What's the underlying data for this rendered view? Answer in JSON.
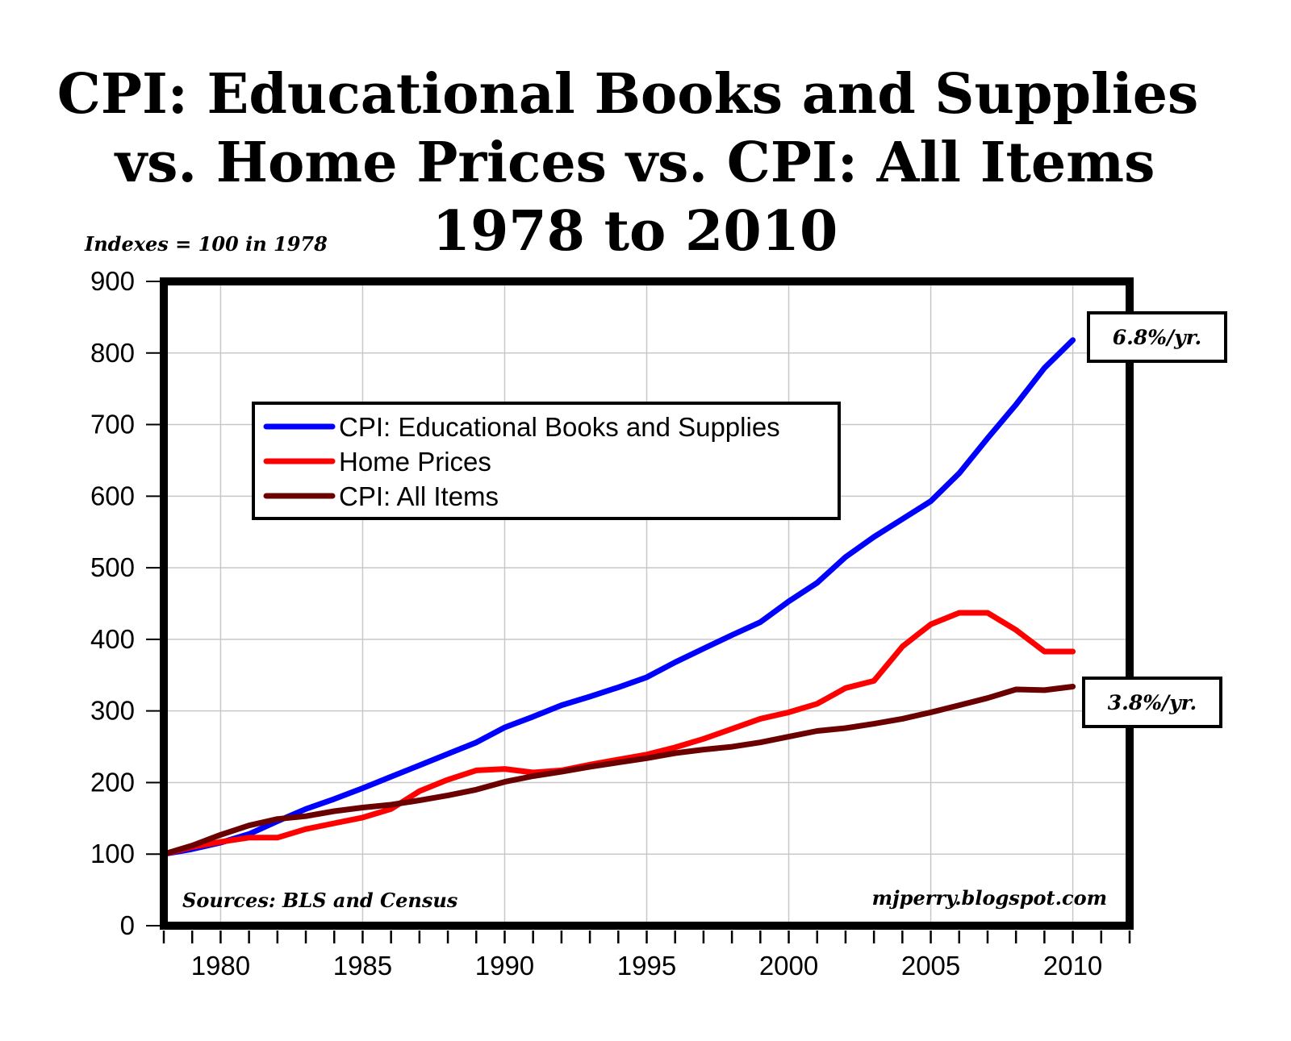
{
  "chart_data": {
    "type": "line",
    "title": [
      "CPI: Educational Books and Supplies",
      "vs. Home Prices vs. CPI: All Items",
      "1978 to 2010"
    ],
    "ylabel": "Indexes = 100 in 1978",
    "xlim": [
      1978,
      2012
    ],
    "ylim": [
      0,
      900
    ],
    "yticks": [
      0,
      100,
      200,
      300,
      400,
      500,
      600,
      700,
      800,
      900
    ],
    "ytick_labels": [
      "0",
      "100",
      "200",
      "300",
      "400",
      "500",
      "600",
      "700",
      "800",
      "900"
    ],
    "xticks": [
      1980,
      1985,
      1990,
      1995,
      2000,
      2005,
      2010
    ],
    "xtick_labels": [
      "1980",
      "1985",
      "1990",
      "1995",
      "2000",
      "2005",
      "2010"
    ],
    "grid": true,
    "legend_position": "upper-left",
    "x": [
      1978,
      1979,
      1980,
      1981,
      1982,
      1983,
      1984,
      1985,
      1986,
      1987,
      1988,
      1989,
      1990,
      1991,
      1992,
      1993,
      1994,
      1995,
      1996,
      1997,
      1998,
      1999,
      2000,
      2001,
      2002,
      2003,
      2004,
      2005,
      2006,
      2007,
      2008,
      2009,
      2010
    ],
    "series": [
      {
        "name": "CPI: Educational Books and Supplies",
        "color": "#0000ff",
        "values": [
          100,
          107,
          116,
          128,
          146,
          163,
          177,
          192,
          208,
          224,
          240,
          256,
          277,
          292,
          308,
          320,
          333,
          347,
          368,
          387,
          406,
          424,
          453,
          479,
          515,
          543,
          568,
          593,
          632,
          681,
          728,
          779,
          818
        ]
      },
      {
        "name": "Home Prices",
        "color": "#ff0000",
        "values": [
          100,
          110,
          117,
          123,
          123,
          135,
          143,
          151,
          163,
          188,
          204,
          217,
          219,
          214,
          217,
          225,
          232,
          239,
          249,
          261,
          275,
          289,
          298,
          310,
          332,
          342,
          390,
          421,
          437,
          437,
          413,
          383,
          383
        ]
      },
      {
        "name": "CPI: All Items",
        "color": "#6b0000",
        "values": [
          100,
          112,
          127,
          140,
          149,
          153,
          160,
          165,
          169,
          175,
          182,
          190,
          201,
          209,
          215,
          222,
          228,
          234,
          241,
          246,
          250,
          256,
          264,
          272,
          276,
          282,
          289,
          298,
          308,
          318,
          330,
          329,
          334
        ]
      }
    ],
    "annotations": {
      "top_rate": "6.8%/yr.",
      "bottom_rate": "3.8%/yr.",
      "sources": "Sources: BLS and Census",
      "website": "mjperry.blogspot.com"
    }
  }
}
